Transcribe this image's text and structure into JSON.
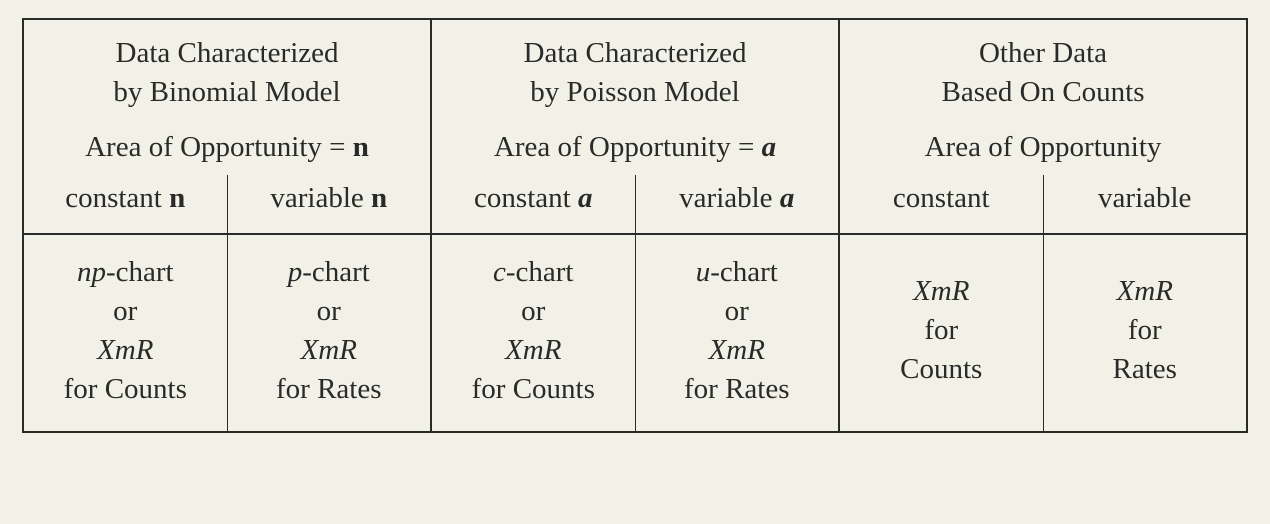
{
  "groups": [
    {
      "title_l1": "Data Characterized",
      "title_l2": "by Binomial Model",
      "area_prefix": "Area of Opportunity = ",
      "area_sym": "n",
      "area_sym_style": "bold",
      "area_suffix": "",
      "left": {
        "sub_prefix": "constant ",
        "sub_sym": "n",
        "sub_sym_style": "bold",
        "lines": [
          {
            "runs": [
              {
                "t": "np",
                "style": "italic"
              },
              {
                "t": "-chart"
              }
            ]
          },
          {
            "runs": [
              {
                "t": "or"
              }
            ]
          },
          {
            "runs": [
              {
                "t": "XmR",
                "style": "italic"
              }
            ]
          },
          {
            "runs": [
              {
                "t": "for Counts"
              }
            ]
          }
        ]
      },
      "right": {
        "sub_prefix": "variable ",
        "sub_sym": "n",
        "sub_sym_style": "bold",
        "lines": [
          {
            "runs": [
              {
                "t": "p",
                "style": "italic"
              },
              {
                "t": "-chart"
              }
            ]
          },
          {
            "runs": [
              {
                "t": "or"
              }
            ]
          },
          {
            "runs": [
              {
                "t": "XmR",
                "style": "italic"
              }
            ]
          },
          {
            "runs": [
              {
                "t": "for Rates"
              }
            ]
          }
        ]
      }
    },
    {
      "title_l1": "Data Characterized",
      "title_l2": "by Poisson Model",
      "area_prefix": "Area of Opportunity = ",
      "area_sym": "a",
      "area_sym_style": "bold-italic",
      "area_suffix": "",
      "left": {
        "sub_prefix": "constant ",
        "sub_sym": "a",
        "sub_sym_style": "bold-italic",
        "lines": [
          {
            "runs": [
              {
                "t": "c",
                "style": "italic"
              },
              {
                "t": "-chart"
              }
            ]
          },
          {
            "runs": [
              {
                "t": "or"
              }
            ]
          },
          {
            "runs": [
              {
                "t": "XmR",
                "style": "italic"
              }
            ]
          },
          {
            "runs": [
              {
                "t": "for Counts"
              }
            ]
          }
        ]
      },
      "right": {
        "sub_prefix": "variable ",
        "sub_sym": "a",
        "sub_sym_style": "bold-italic",
        "lines": [
          {
            "runs": [
              {
                "t": "u",
                "style": "italic"
              },
              {
                "t": "-chart"
              }
            ]
          },
          {
            "runs": [
              {
                "t": "or"
              }
            ]
          },
          {
            "runs": [
              {
                "t": "XmR",
                "style": "italic"
              }
            ]
          },
          {
            "runs": [
              {
                "t": "for Rates"
              }
            ]
          }
        ]
      }
    },
    {
      "title_l1": "Other Data",
      "title_l2": "Based On Counts",
      "area_prefix": "Area of Opportunity",
      "area_sym": "",
      "area_sym_style": "",
      "area_suffix": "",
      "left": {
        "sub_prefix": "constant",
        "sub_sym": "",
        "sub_sym_style": "",
        "lines": [
          {
            "runs": [
              {
                "t": "XmR",
                "style": "italic"
              }
            ]
          },
          {
            "runs": [
              {
                "t": "for"
              }
            ]
          },
          {
            "runs": [
              {
                "t": "Counts"
              }
            ]
          }
        ]
      },
      "right": {
        "sub_prefix": "variable",
        "sub_sym": "",
        "sub_sym_style": "",
        "lines": [
          {
            "runs": [
              {
                "t": "XmR",
                "style": "italic"
              }
            ]
          },
          {
            "runs": [
              {
                "t": "for"
              }
            ]
          },
          {
            "runs": [
              {
                "t": "Rates"
              }
            ]
          }
        ]
      }
    }
  ],
  "colors": {
    "ink": "#2a2a28",
    "paper": "#f2f1e8"
  }
}
